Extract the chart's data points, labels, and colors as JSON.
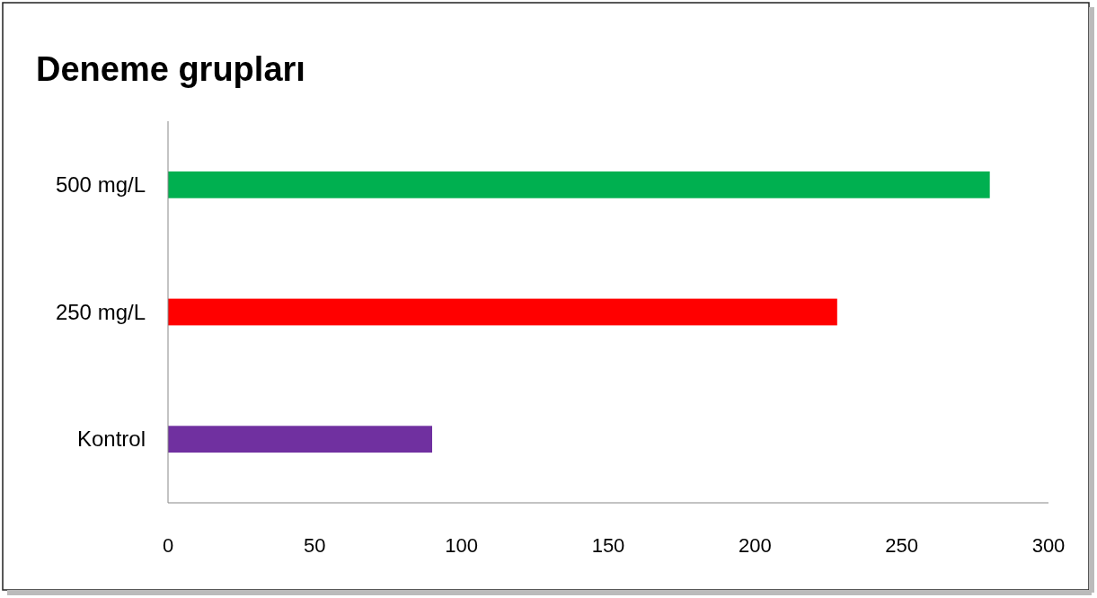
{
  "chart_data": {
    "type": "bar",
    "orientation": "horizontal",
    "title": "Deneme grupları",
    "categories": [
      "500 mg/L",
      "250 mg/L",
      "Kontrol"
    ],
    "values": [
      280,
      228,
      90
    ],
    "colors": [
      "#00b050",
      "#ff0000",
      "#7030a0"
    ],
    "xlim": [
      0,
      300
    ],
    "xticks": [
      0,
      50,
      100,
      150,
      200,
      250,
      300
    ]
  }
}
